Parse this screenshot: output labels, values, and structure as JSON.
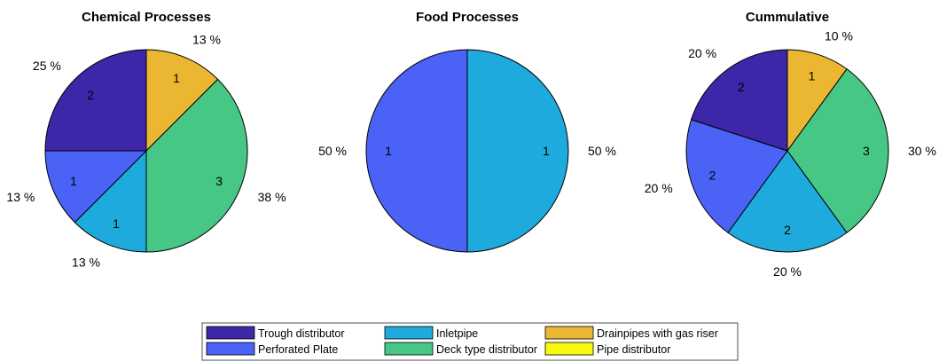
{
  "legend": [
    {
      "label": "Trough distributor",
      "color": "#3e26a8"
    },
    {
      "label": "Perforated Plate",
      "color": "#4a62f5"
    },
    {
      "label": "Inletpipe",
      "color": "#1eaadc"
    },
    {
      "label": "Deck type distributor",
      "color": "#46c785"
    },
    {
      "label": "Drainpipes with gas riser",
      "color": "#ebb733"
    },
    {
      "label": "Pipe distributor",
      "color": "#f9f90f"
    }
  ],
  "chart_data": [
    {
      "type": "pie",
      "title": "Chemical Processes",
      "slices": [
        {
          "category": "Drainpipes with gas riser",
          "value": 1,
          "percent": "13 %"
        },
        {
          "category": "Deck type distributor",
          "value": 3,
          "percent": "38 %"
        },
        {
          "category": "Inletpipe",
          "value": 1,
          "percent": "13 %"
        },
        {
          "category": "Perforated Plate",
          "value": 1,
          "percent": "13 %"
        },
        {
          "category": "Trough distributor",
          "value": 2,
          "percent": "25 %"
        }
      ]
    },
    {
      "type": "pie",
      "title": "Food Processes",
      "slices": [
        {
          "category": "Inletpipe",
          "value": 1,
          "percent": "50 %"
        },
        {
          "category": "Perforated Plate",
          "value": 1,
          "percent": "50 %"
        }
      ]
    },
    {
      "type": "pie",
      "title": "Cummulative",
      "slices": [
        {
          "category": "Drainpipes with gas riser",
          "value": 1,
          "percent": "10 %"
        },
        {
          "category": "Deck type distributor",
          "value": 3,
          "percent": "30 %"
        },
        {
          "category": "Inletpipe",
          "value": 2,
          "percent": "20 %"
        },
        {
          "category": "Perforated Plate",
          "value": 2,
          "percent": "20 %"
        },
        {
          "category": "Trough distributor",
          "value": 2,
          "percent": "20 %"
        }
      ]
    }
  ]
}
